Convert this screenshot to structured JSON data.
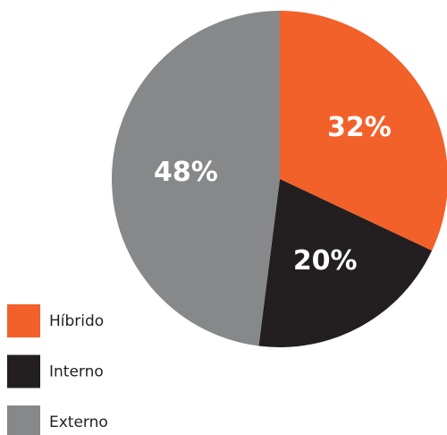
{
  "chart_data": {
    "type": "pie",
    "categories": [
      "Híbrido",
      "Interno",
      "Externo"
    ],
    "values": [
      32,
      20,
      48
    ],
    "value_labels": [
      "32%",
      "20%",
      "48%"
    ],
    "colors": [
      "#f26129",
      "#231f20",
      "#87888a"
    ],
    "legend": "lower left"
  }
}
